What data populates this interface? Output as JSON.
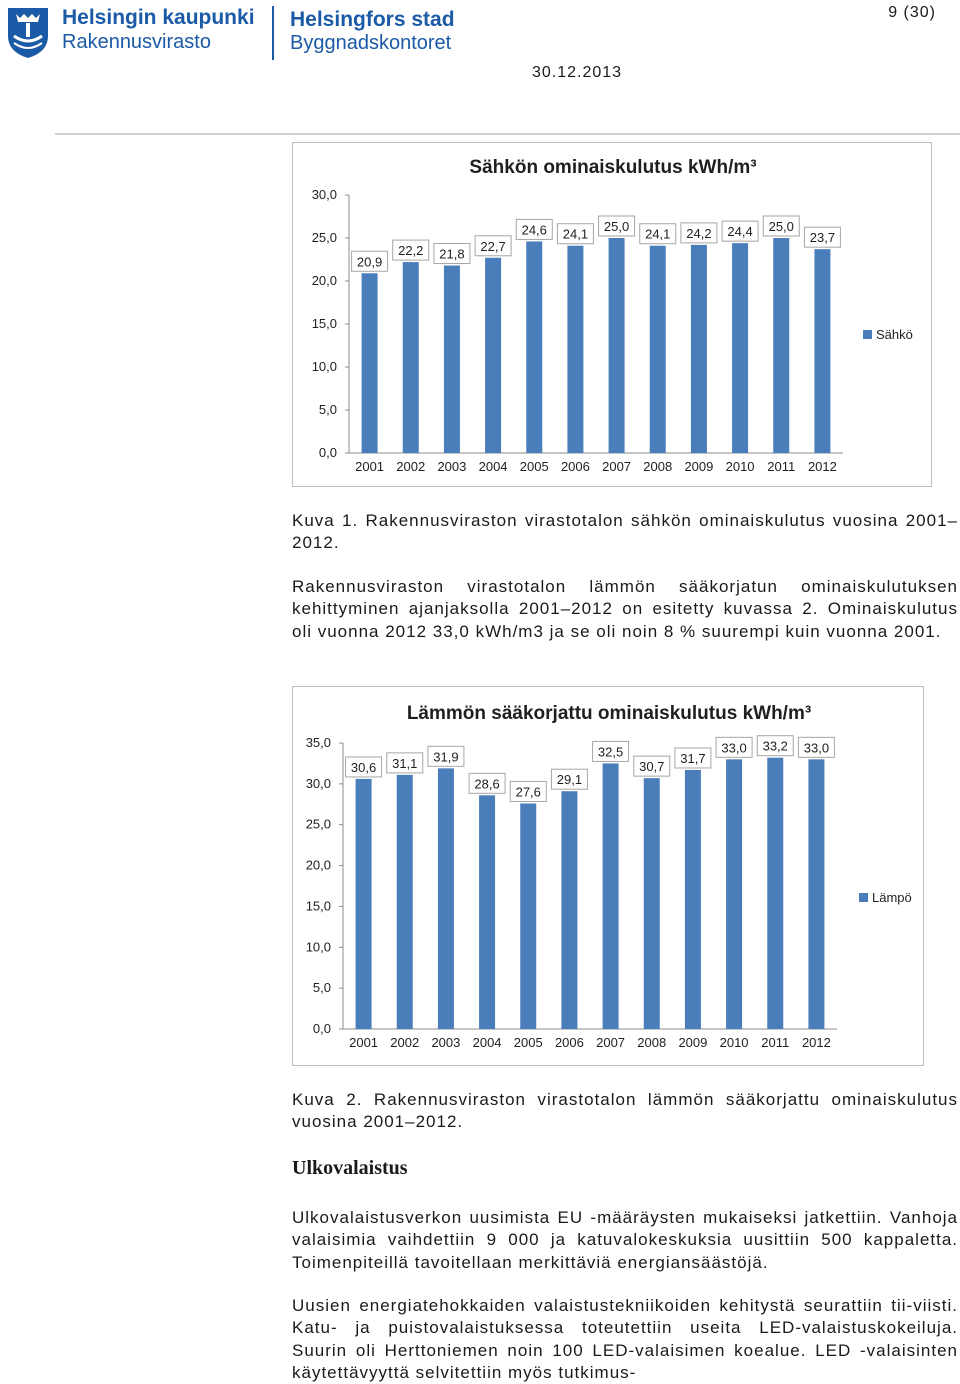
{
  "header": {
    "org_fi_line1": "Helsingin kaupunki",
    "org_fi_line2": "Rakennusvirasto",
    "org_sv_line1": "Helsingfors stad",
    "org_sv_line2": "Byggnadskontoret",
    "page_number": "9 (30)",
    "date": "30.12.2013",
    "brand_color": "#1b5aa6"
  },
  "chart_data": [
    {
      "type": "bar",
      "title": "Sähkön ominaiskulutus kWh/m³",
      "categories": [
        "2001",
        "2002",
        "2003",
        "2004",
        "2005",
        "2006",
        "2007",
        "2008",
        "2009",
        "2010",
        "2011",
        "2012"
      ],
      "series": [
        {
          "name": "Sähkö",
          "values": [
            20.9,
            22.2,
            21.8,
            22.7,
            24.6,
            24.1,
            25.0,
            24.1,
            24.2,
            24.4,
            25.0,
            23.7
          ],
          "labels": [
            "20,9",
            "22,2",
            "21,8",
            "22,7",
            "24,6",
            "24,1",
            "25,0",
            "24,1",
            "24,2",
            "24,4",
            "25,0",
            "23,7"
          ]
        }
      ],
      "yticks": [
        "0,0",
        "5,0",
        "10,0",
        "15,0",
        "20,0",
        "25,0",
        "30,0"
      ],
      "ylim": [
        0,
        30
      ],
      "legend": "right",
      "grid": false,
      "bar_color": "#4a7ebb"
    },
    {
      "type": "bar",
      "title": "Lämmön sääkorjattu ominaiskulutus kWh/m³",
      "categories": [
        "2001",
        "2002",
        "2003",
        "2004",
        "2005",
        "2006",
        "2007",
        "2008",
        "2009",
        "2010",
        "2011",
        "2012"
      ],
      "series": [
        {
          "name": "Lämpö",
          "values": [
            30.6,
            31.1,
            31.9,
            28.6,
            27.6,
            29.1,
            32.5,
            30.7,
            31.7,
            33.0,
            33.2,
            33.0
          ],
          "labels": [
            "30,6",
            "31,1",
            "31,9",
            "28,6",
            "27,6",
            "29,1",
            "32,5",
            "30,7",
            "31,7",
            "33,0",
            "33,2",
            "33,0"
          ]
        }
      ],
      "yticks": [
        "0,0",
        "5,0",
        "10,0",
        "15,0",
        "20,0",
        "25,0",
        "30,0",
        "35,0"
      ],
      "ylim": [
        0,
        35
      ],
      "legend": "right",
      "grid": false,
      "bar_color": "#4a7ebb"
    }
  ],
  "captions": {
    "fig1": "Kuva 1. Rakennusviraston virastotalon sähkön ominaiskulutus vuosina 2001–2012.",
    "fig2": "Kuva 2. Rakennusviraston virastotalon lämmön sääkorjattu ominaiskulutus vuosina 2001–2012."
  },
  "body": {
    "para_heat": "Rakennusviraston virastotalon lämmön sääkorjatun ominaiskulutuksen kehittyminen ajanjaksolla 2001–2012 on esitetty kuvassa 2. Ominaiskulutus oli vuonna 2012 33,0 kWh/m3 ja se oli noin 8 % suurempi kuin vuonna 2001.",
    "heading_outdoor": "Ulkovalaistus",
    "para_outdoor_1": "Ulkovalaistusverkon uusimista EU -määräysten mukaiseksi jatkettiin. Vanhoja valaisimia vaihdettiin 9 000 ja katuvalokeskuksia uusittiin 500 kappaletta. Toimenpiteillä tavoitellaan merkittäviä energiansäästöjä.",
    "para_outdoor_2": "Uusien energiatehokkaiden valaistustekniikoiden kehitystä seurattiin tii-viisti. Katu- ja puistovalaistuksessa toteutettiin useita LED-valaistuskokeiluja. Suurin oli Herttoniemen noin 100 LED-valaisimen koealue. LED -valaisinten käytettävyyttä selvitettiin myös tutkimus-"
  }
}
